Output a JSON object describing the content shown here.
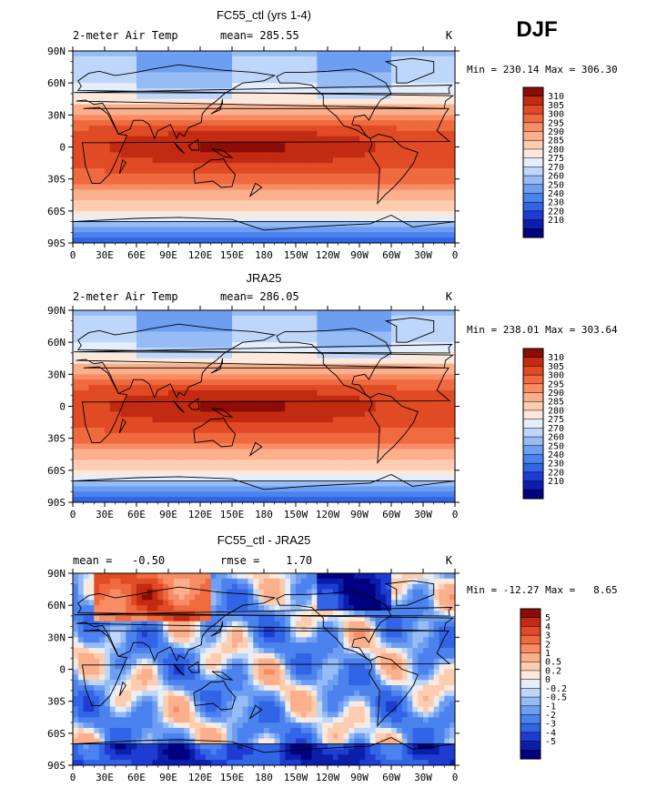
{
  "season": "DJF",
  "units_label": "K",
  "lon_ticks": [
    "0",
    "30E",
    "60E",
    "90E",
    "120E",
    "150E",
    "180",
    "150W",
    "120W",
    "90W",
    "60W",
    "30W",
    "0"
  ],
  "lat_ticks": [
    "90N",
    "60N",
    "30N",
    "0",
    "30S",
    "60S",
    "90S"
  ],
  "colors": {
    "temp_levels": [
      "#000080",
      "#0a1eaa",
      "#1e3cd2",
      "#3264e6",
      "#4b82ee",
      "#6e9ef2",
      "#96bcf6",
      "#bed6fa",
      "#e4eefc",
      "#fde9dc",
      "#fccdb0",
      "#fbaf8c",
      "#f88c64",
      "#f06a40",
      "#e04a24",
      "#c22a12",
      "#8c0c06"
    ],
    "diff_levels": [
      "#000080",
      "#0a1eaa",
      "#1e3cd2",
      "#3264e6",
      "#4b82ee",
      "#6e9ef2",
      "#96bcf6",
      "#bed6fa",
      "#e4eefc",
      "#fde9dc",
      "#fccdb0",
      "#fbaf8c",
      "#f88c64",
      "#f06a40",
      "#e04a24",
      "#c22a12",
      "#8c0c06"
    ],
    "coast": "#000000"
  },
  "chart_data": [
    {
      "type": "heatmap",
      "title": "FC55_ctl (yrs 1-4)",
      "subtitle_left": "2-meter Air Temp",
      "subtitle_center": "mean= 285.55",
      "units": "K",
      "stats_text": "Min = 230.14 Max = 306.30",
      "min": 230.14,
      "max": 306.3,
      "mean": 285.55,
      "x_range_deg": [
        0,
        360
      ],
      "y_range_deg": [
        -90,
        90
      ],
      "colorbar_labels": [
        "310",
        "305",
        "300",
        "295",
        "290",
        "285",
        "280",
        "275",
        "270",
        "260",
        "250",
        "240",
        "230",
        "220",
        "210"
      ]
    },
    {
      "type": "heatmap",
      "title": "JRA25",
      "subtitle_left": "2-meter Air Temp",
      "subtitle_center": "mean= 286.05",
      "units": "K",
      "stats_text": "Min = 238.01 Max = 303.64",
      "min": 238.01,
      "max": 303.64,
      "mean": 286.05,
      "x_range_deg": [
        0,
        360
      ],
      "y_range_deg": [
        -90,
        90
      ],
      "colorbar_labels": [
        "310",
        "305",
        "300",
        "295",
        "290",
        "285",
        "280",
        "275",
        "270",
        "260",
        "250",
        "240",
        "230",
        "220",
        "210"
      ]
    },
    {
      "type": "heatmap",
      "title": "FC55_ctl - JRA25",
      "subtitle_left": "mean =   -0.50",
      "subtitle_center": "rmse =    1.70",
      "units": "K",
      "stats_text": "Min = -12.27 Max =   8.65",
      "min": -12.27,
      "max": 8.65,
      "mean": -0.5,
      "rmse": 1.7,
      "x_range_deg": [
        0,
        360
      ],
      "y_range_deg": [
        -90,
        90
      ],
      "colorbar_labels": [
        "5",
        "4",
        "3",
        "2",
        "1",
        "0.5",
        "0.2",
        "0",
        "-0.2",
        "-0.5",
        "-1",
        "-2",
        "-3",
        "-4",
        "-5"
      ]
    }
  ]
}
